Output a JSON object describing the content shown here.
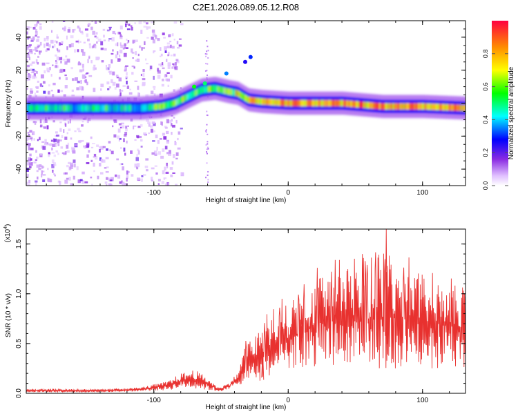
{
  "page_title": "C2E1.2026.089.05.12.R08",
  "colors": {
    "line": "#e8312f",
    "background": "#ffffff",
    "frame": "#000000"
  },
  "chart_data": [
    {
      "type": "heatmap",
      "title": "C2E1.2026.089.05.12.R08",
      "xlabel": "Height of straight line (km)",
      "ylabel": "Frequency (Hz)",
      "xlim": [
        -195,
        132
      ],
      "ylim": [
        -50,
        50
      ],
      "xticks": [
        -100,
        0,
        100
      ],
      "yticks": [
        -40,
        -20,
        0,
        20,
        40
      ],
      "colorbar": {
        "label": "Normalized spectral amplitude",
        "range": [
          0,
          1
        ],
        "ticks": [
          0.0,
          0.2,
          0.4,
          0.6,
          0.8
        ],
        "tick_labels": [
          "0.0",
          "0.2",
          "0.4",
          "0.6",
          "0.8"
        ]
      },
      "ridge": [
        {
          "x": -195,
          "f": -3
        },
        {
          "x": -160,
          "f": -3
        },
        {
          "x": -130,
          "f": -3
        },
        {
          "x": -110,
          "f": -3
        },
        {
          "x": -95,
          "f": -2
        },
        {
          "x": -85,
          "f": 0
        },
        {
          "x": -75,
          "f": 4
        },
        {
          "x": -65,
          "f": 8
        },
        {
          "x": -55,
          "f": 9
        },
        {
          "x": -45,
          "f": 7
        },
        {
          "x": -38,
          "f": 6
        },
        {
          "x": -30,
          "f": 2
        },
        {
          "x": -20,
          "f": 1
        },
        {
          "x": 0,
          "f": 0
        },
        {
          "x": 40,
          "f": 0
        },
        {
          "x": 70,
          "f": -2
        },
        {
          "x": 100,
          "f": -2
        },
        {
          "x": 132,
          "f": -3
        }
      ]
    },
    {
      "type": "line",
      "title": "",
      "xlabel": "Height of straight line (km)",
      "ylabel": "SNR (10 * v/v)",
      "multiplier_label": "(x10",
      "multiplier_exp": "4",
      "xlim": [
        -195,
        132
      ],
      "ylim": [
        0,
        1.65
      ],
      "xticks": [
        -100,
        0,
        100
      ],
      "yticks": [
        0.0,
        0.5,
        1.0,
        1.5
      ],
      "ytick_labels": [
        "0.0",
        "0.5",
        "1.0",
        "1.5"
      ],
      "series": [
        {
          "name": "SNR",
          "envelope": [
            {
              "x": -195,
              "lo": 0.01,
              "hi": 0.05
            },
            {
              "x": -140,
              "lo": 0.01,
              "hi": 0.04
            },
            {
              "x": -110,
              "lo": 0.02,
              "hi": 0.06
            },
            {
              "x": -90,
              "lo": 0.03,
              "hi": 0.12
            },
            {
              "x": -80,
              "lo": 0.05,
              "hi": 0.2
            },
            {
              "x": -70,
              "lo": 0.05,
              "hi": 0.24
            },
            {
              "x": -60,
              "lo": 0.03,
              "hi": 0.16
            },
            {
              "x": -52,
              "lo": 0.02,
              "hi": 0.06
            },
            {
              "x": -45,
              "lo": 0.03,
              "hi": 0.1
            },
            {
              "x": -37,
              "lo": 0.08,
              "hi": 0.22
            },
            {
              "x": -32,
              "lo": 0.1,
              "hi": 0.5
            },
            {
              "x": -22,
              "lo": 0.12,
              "hi": 0.62
            },
            {
              "x": -10,
              "lo": 0.15,
              "hi": 0.8
            },
            {
              "x": 5,
              "lo": 0.2,
              "hi": 0.95
            },
            {
              "x": 20,
              "lo": 0.25,
              "hi": 1.15
            },
            {
              "x": 40,
              "lo": 0.3,
              "hi": 1.25
            },
            {
              "x": 60,
              "lo": 0.25,
              "hi": 1.25
            },
            {
              "x": 75,
              "lo": 0.25,
              "hi": 1.3
            },
            {
              "x": 100,
              "lo": 0.25,
              "hi": 1.2
            },
            {
              "x": 132,
              "lo": 0.25,
              "hi": 1.05
            }
          ],
          "spikes": [
            {
              "x": 73,
              "y": 1.65
            },
            {
              "x": 56,
              "y": 1.36
            },
            {
              "x": 35,
              "y": 1.34
            },
            {
              "x": 10,
              "y": 0.88
            },
            {
              "x": -19,
              "y": 0.45
            }
          ]
        }
      ]
    }
  ]
}
